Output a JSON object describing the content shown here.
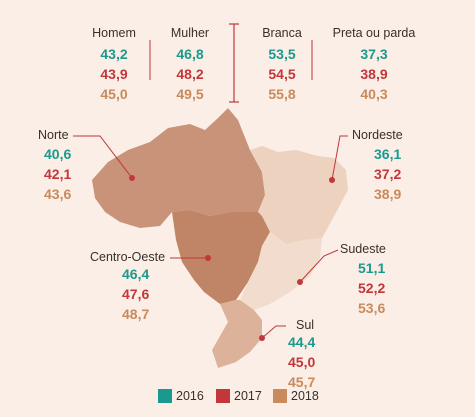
{
  "colors": {
    "y2016": "#1a9a8e",
    "y2017": "#c2373b",
    "y2018": "#c98a5c",
    "background": "#fbeee6"
  },
  "groups": {
    "homem": {
      "label": "Homem",
      "v2016": "43,2",
      "v2017": "43,9",
      "v2018": "45,0"
    },
    "mulher": {
      "label": "Mulher",
      "v2016": "46,8",
      "v2017": "48,2",
      "v2018": "49,5"
    },
    "branca": {
      "label": "Branca",
      "v2016": "53,5",
      "v2017": "54,5",
      "v2018": "55,8"
    },
    "preta": {
      "label": "Preta ou parda",
      "v2016": "37,3",
      "v2017": "38,9",
      "v2018": "40,3"
    }
  },
  "regions": {
    "norte": {
      "label": "Norte",
      "v2016": "40,6",
      "v2017": "42,1",
      "v2018": "43,6"
    },
    "nordeste": {
      "label": "Nordeste",
      "v2016": "36,1",
      "v2017": "37,2",
      "v2018": "38,9"
    },
    "centro_oeste": {
      "label": "Centro-Oeste",
      "v2016": "46,4",
      "v2017": "47,6",
      "v2018": "48,7"
    },
    "sudeste": {
      "label": "Sudeste",
      "v2016": "51,1",
      "v2017": "52,2",
      "v2018": "53,6"
    },
    "sul": {
      "label": "Sul",
      "v2016": "44,4",
      "v2017": "45,0",
      "v2018": "45,7"
    }
  },
  "legend": {
    "y2016": "2016",
    "y2017": "2017",
    "y2018": "2018"
  }
}
